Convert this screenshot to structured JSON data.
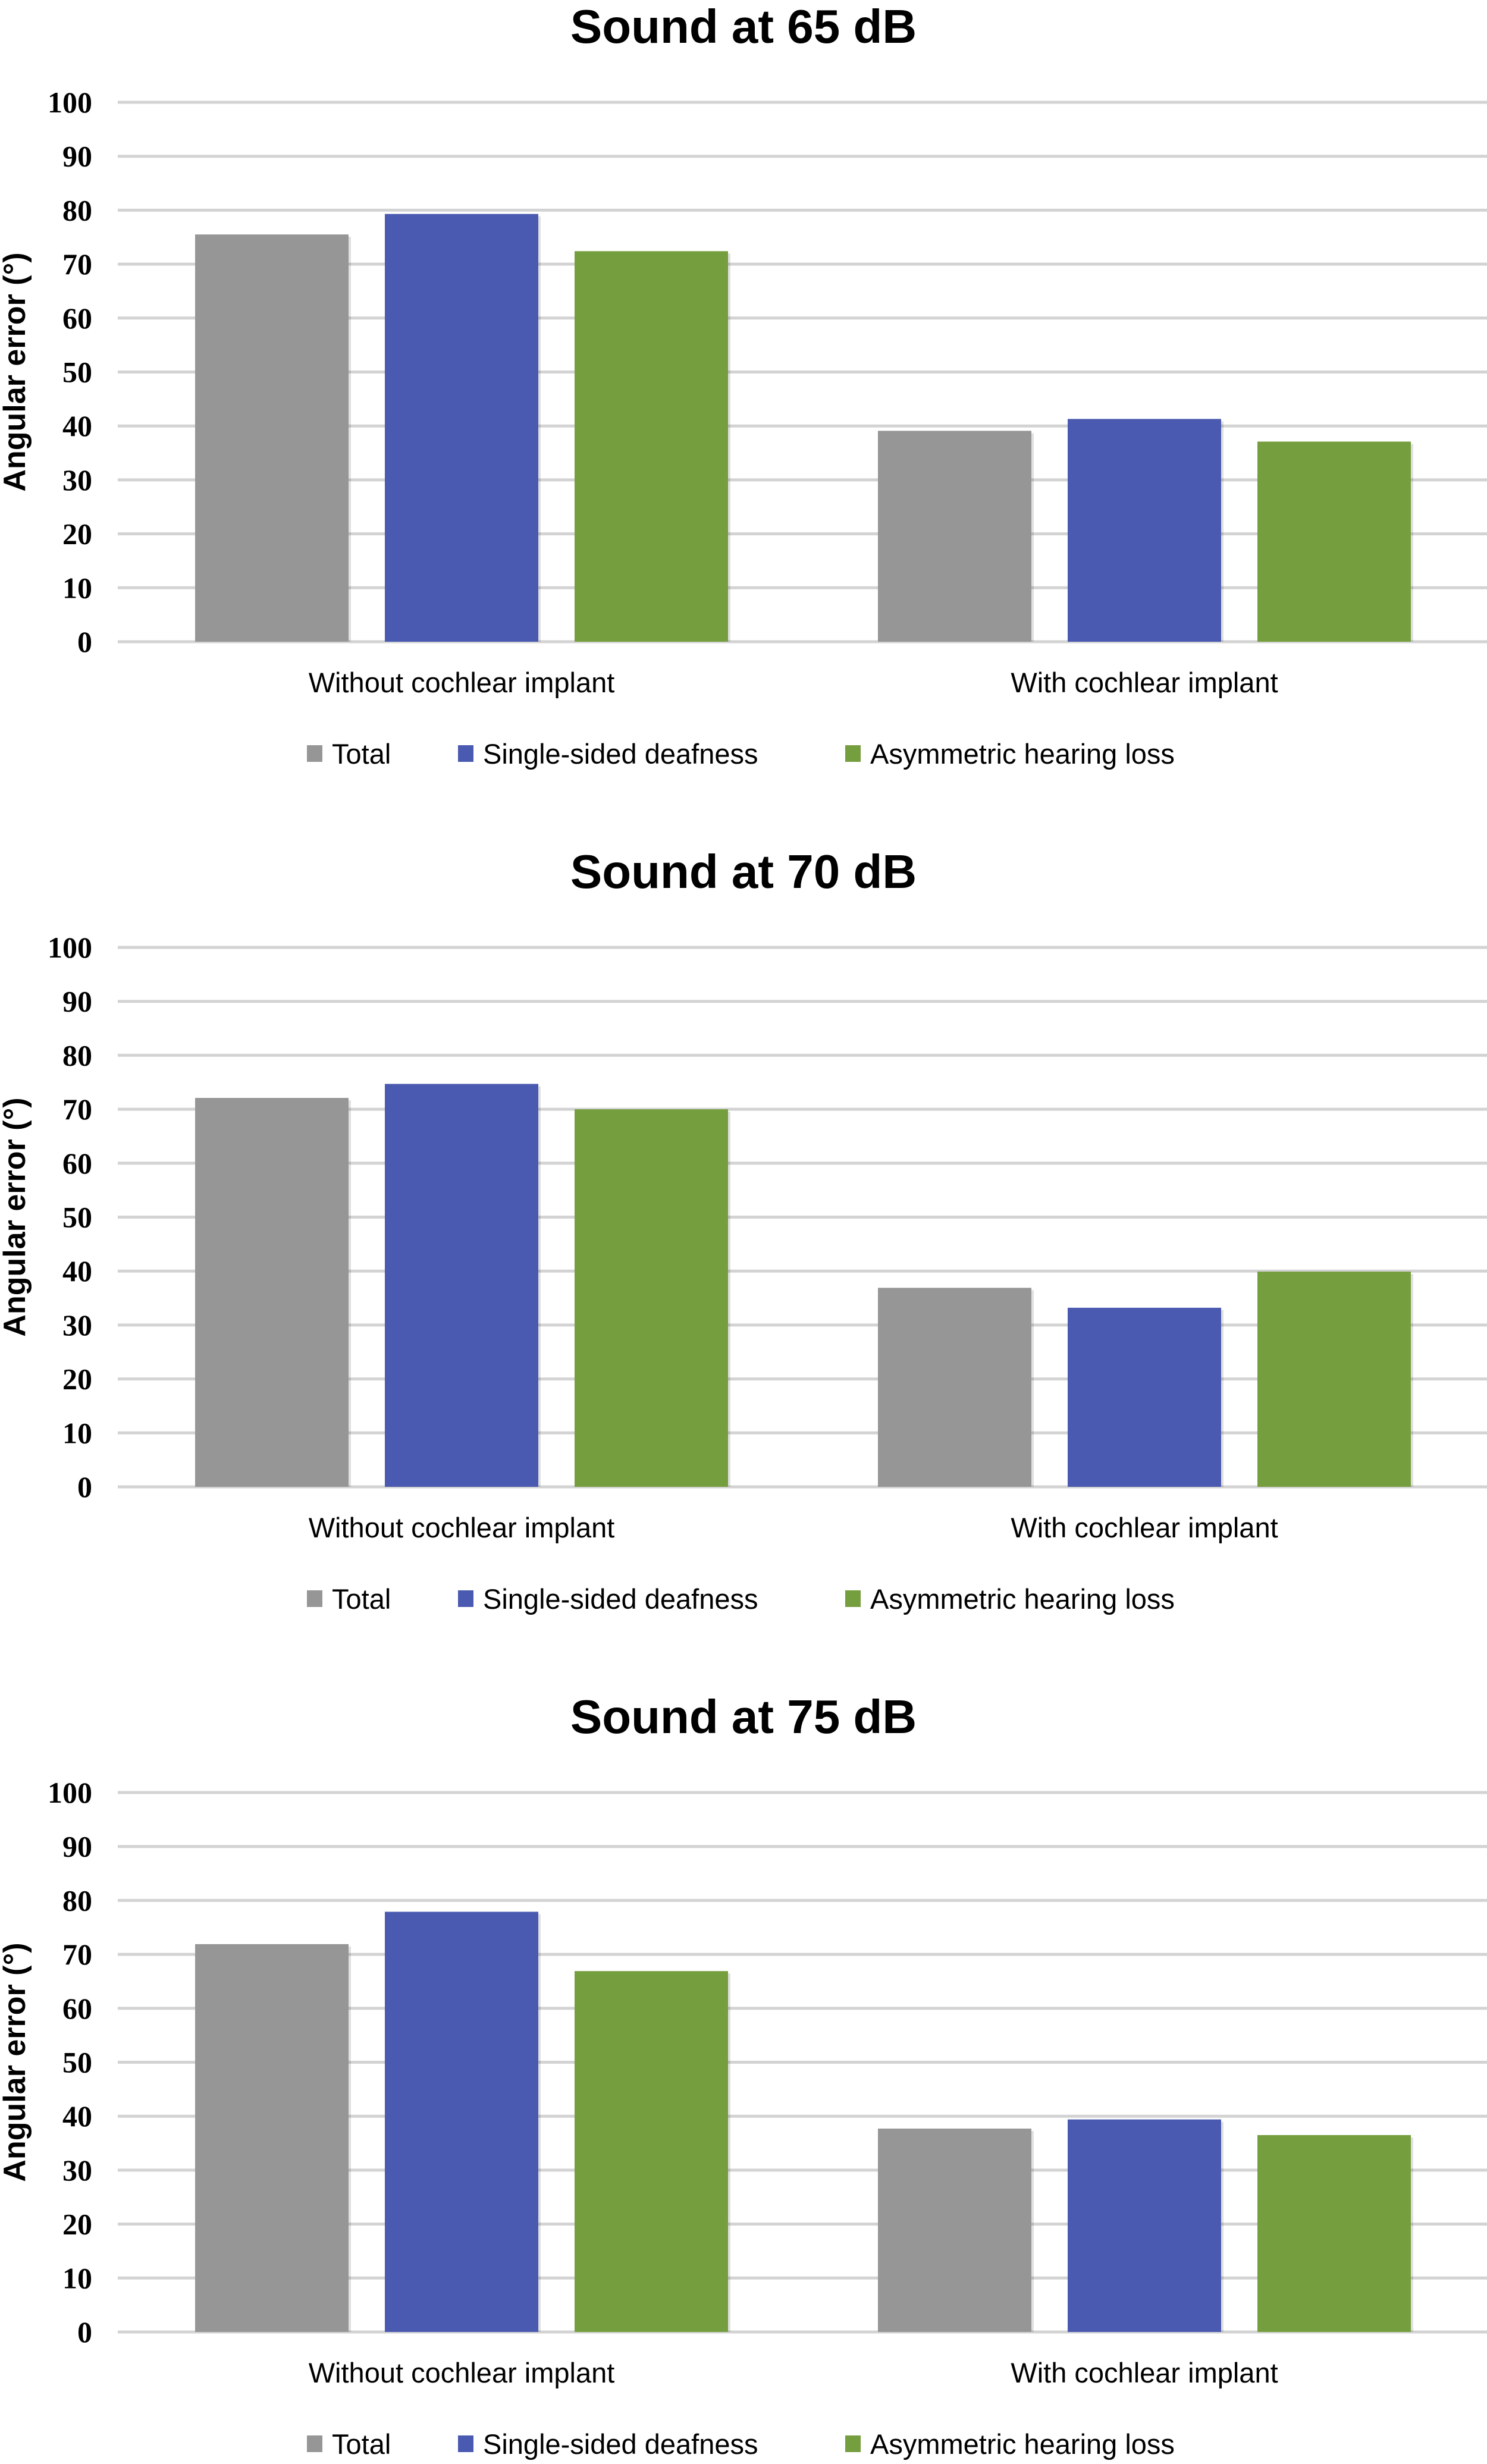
{
  "chart_data": [
    {
      "type": "bar",
      "title": "Sound at 65 dB",
      "xlabel": "",
      "ylabel": "Angular error (°)",
      "ylim": [
        0,
        100
      ],
      "yticks": [
        "0",
        "10",
        "20",
        "30",
        "40",
        "50",
        "60",
        "70",
        "80",
        "90",
        "100"
      ],
      "grid": true,
      "legend_position": "bottom",
      "categories": [
        "Without cochlear implant",
        "With cochlear implant"
      ],
      "series": [
        {
          "name": "Total",
          "color": "#969696",
          "values": [
            75.5,
            39.1
          ]
        },
        {
          "name": "Single-sided deafness",
          "color": "#4a5ab0",
          "values": [
            79.3,
            41.3
          ]
        },
        {
          "name": "Asymmetric hearing loss",
          "color": "#759e3e",
          "values": [
            72.4,
            37.1
          ]
        }
      ]
    },
    {
      "type": "bar",
      "title": "Sound at 70 dB",
      "xlabel": "",
      "ylabel": "Angular error (°)",
      "ylim": [
        0,
        100
      ],
      "yticks": [
        "0",
        "10",
        "20",
        "30",
        "40",
        "50",
        "60",
        "70",
        "80",
        "90",
        "100"
      ],
      "grid": true,
      "legend_position": "bottom",
      "categories": [
        "Without cochlear implant",
        "With cochlear implant"
      ],
      "series": [
        {
          "name": "Total",
          "color": "#969696",
          "values": [
            72.1,
            36.9
          ]
        },
        {
          "name": "Single-sided deafness",
          "color": "#4a5ab0",
          "values": [
            74.7,
            33.2
          ]
        },
        {
          "name": "Asymmetric hearing loss",
          "color": "#759e3e",
          "values": [
            70.0,
            39.9
          ]
        }
      ]
    },
    {
      "type": "bar",
      "title": "Sound at 75 dB",
      "xlabel": "",
      "ylabel": "Angular error (°)",
      "ylim": [
        0,
        100
      ],
      "yticks": [
        "0",
        "10",
        "20",
        "30",
        "40",
        "50",
        "60",
        "70",
        "80",
        "90",
        "100"
      ],
      "grid": true,
      "legend_position": "bottom",
      "categories": [
        "Without cochlear implant",
        "With cochlear implant"
      ],
      "series": [
        {
          "name": "Total",
          "color": "#969696",
          "values": [
            71.9,
            37.7
          ]
        },
        {
          "name": "Single-sided deafness",
          "color": "#4a5ab0",
          "values": [
            77.9,
            39.4
          ]
        },
        {
          "name": "Asymmetric hearing loss",
          "color": "#759e3e",
          "values": [
            66.9,
            36.5
          ]
        }
      ]
    }
  ]
}
